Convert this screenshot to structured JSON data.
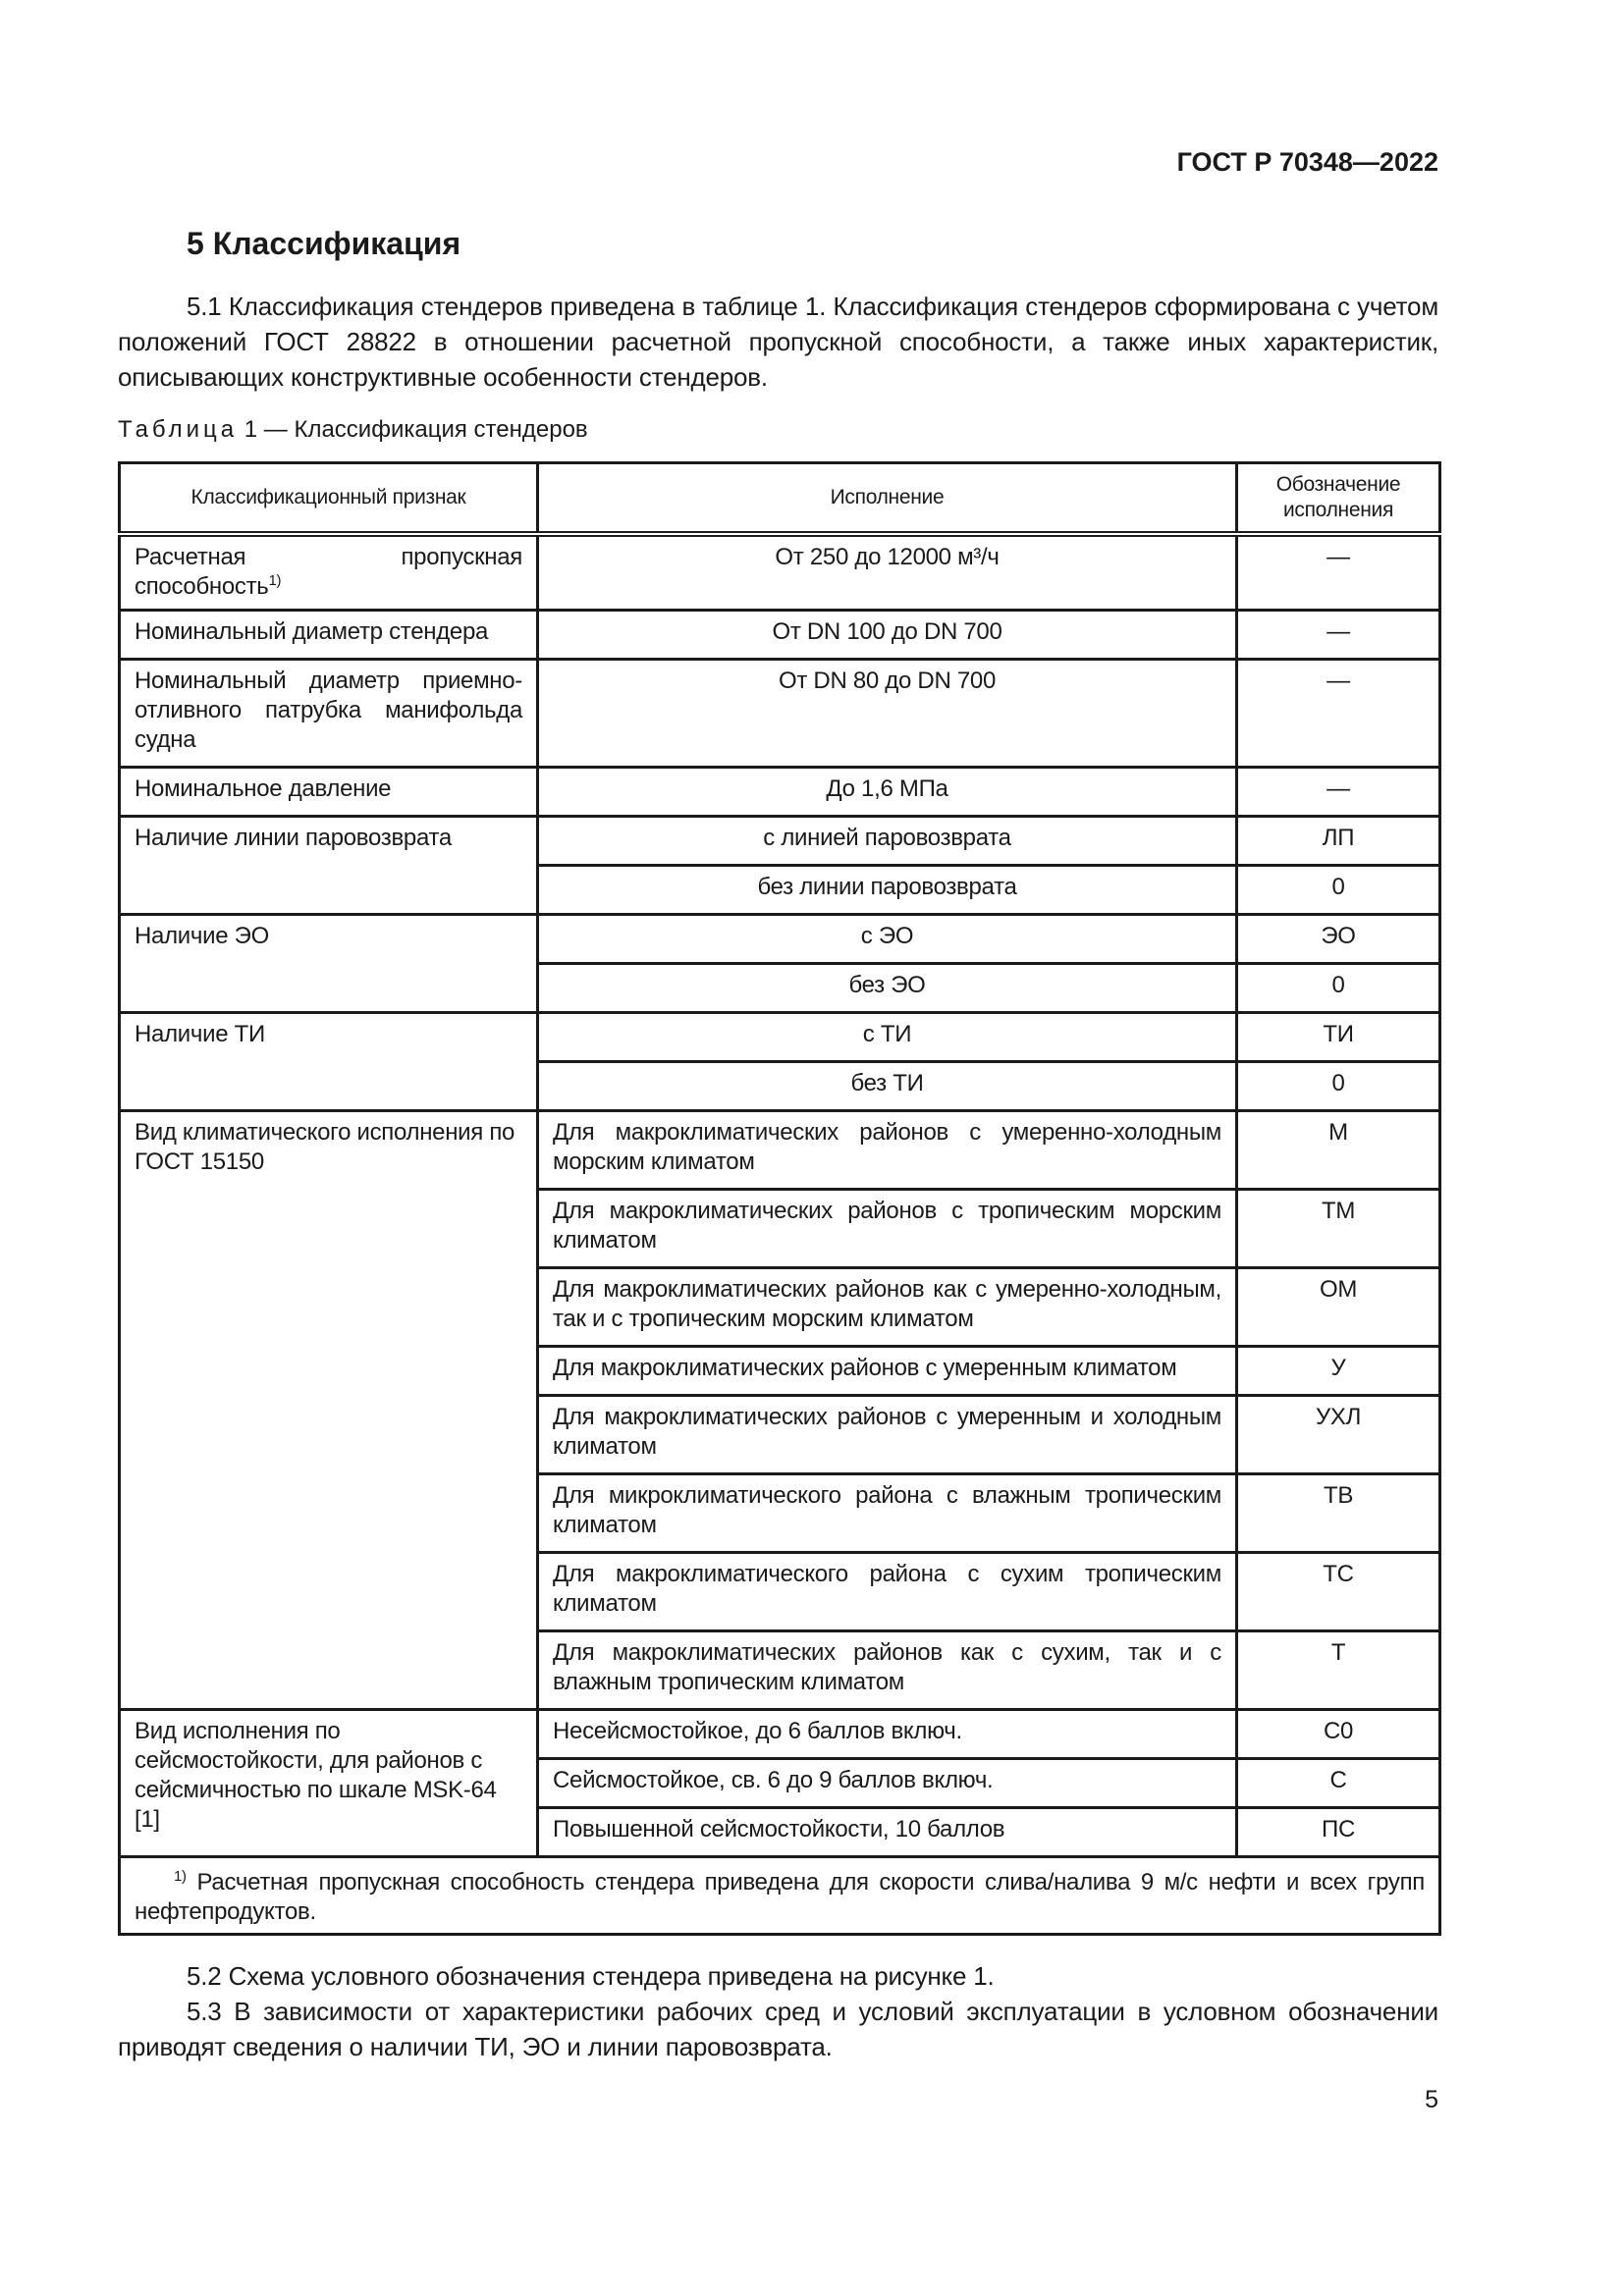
{
  "header": {
    "doc_id": "ГОСТ Р 70348—2022"
  },
  "section": {
    "title": "5 Классификация"
  },
  "paragraphs": {
    "p51": "5.1 Классификация стендеров приведена в таблице 1. Классификация стендеров сформирована с учетом положений ГОСТ 28822 в отношении расчетной пропускной способности, а также иных характеристик, описывающих конструктивные особенности стендеров.",
    "p52": "5.2 Схема условного обозначения стендера приведена на рисунке 1.",
    "p53": "5.3 В зависимости от характеристики рабочих сред и условий эксплуатации в условном обозначении приводят сведения о наличии ТИ, ЭО и линии паровозврата."
  },
  "table": {
    "caption_prefix": "Таблица",
    "caption_rest": "1 — Классификация стендеров",
    "headers": [
      "Классификационный признак",
      "Исполнение",
      "Обозначение исполнения"
    ],
    "groups": [
      {
        "feature": "Расчетная пропускная способность",
        "feature_sup": "1)",
        "rows": [
          {
            "value": "От 250 до 12000 м³/ч",
            "code": "—",
            "h": 78
          }
        ]
      },
      {
        "feature": "Номинальный диаметр стендера",
        "rows": [
          {
            "value": "От DN 100 до DN 700",
            "code": "—",
            "h": 50
          }
        ]
      },
      {
        "feature": "Номинальный диаметр приемно-отливного патрубка манифольда судна",
        "rows": [
          {
            "value": "От DN 80 до DN 700",
            "code": "—",
            "h": 110
          }
        ]
      },
      {
        "feature": "Номинальное давление",
        "rows": [
          {
            "value": "До 1,6 МПа",
            "code": "—",
            "h": 50
          }
        ]
      },
      {
        "feature": "Наличие линии паровозврата",
        "rows": [
          {
            "value": "с линией паровозврата",
            "code": "ЛП",
            "h": 50
          },
          {
            "value": "без линии паровозврата",
            "code": "0",
            "h": 50
          }
        ]
      },
      {
        "feature": "Наличие ЭО",
        "rows": [
          {
            "value": "с ЭО",
            "code": "ЭО",
            "h": 50
          },
          {
            "value": "без ЭО",
            "code": "0",
            "h": 50
          }
        ]
      },
      {
        "feature": "Наличие ТИ",
        "rows": [
          {
            "value": "с ТИ",
            "code": "ТИ",
            "h": 50
          },
          {
            "value": "без ТИ",
            "code": "0",
            "h": 50
          }
        ]
      },
      {
        "feature": "Вид климатического исполнения по ГОСТ 15150",
        "left": true,
        "rows": [
          {
            "value": "Для макроклиматических районов с умеренно-холодным морским климатом",
            "code": "М",
            "h": 80
          },
          {
            "value": "Для макроклиматических районов с тропическим морским климатом",
            "code": "ТМ",
            "h": 80
          },
          {
            "value": "Для макроклиматических районов как с умеренно-холодным, так и с тропическим морским климатом",
            "code": "ОМ",
            "h": 80
          },
          {
            "value": "Для макроклиматических районов с умеренным климатом",
            "code": "У",
            "h": 50
          },
          {
            "value": "Для макроклиматических районов с умеренным и холодным климатом",
            "code": "УХЛ",
            "h": 80
          },
          {
            "value": "Для микроклиматического района с влажным тропическим климатом",
            "code": "ТВ",
            "h": 80
          },
          {
            "value": "Для макроклиматического района с сухим тропическим климатом",
            "code": "ТС",
            "h": 80
          },
          {
            "value": "Для макроклиматических районов как с сухим, так и с влажным тропическим климатом",
            "code": "Т",
            "h": 80
          }
        ]
      },
      {
        "feature": "Вид исполнения по сейсмостойкости, для районов с сейсмичностью по шкале MSK-64 [1]",
        "left": true,
        "rows": [
          {
            "value": "Несейсмостойкое, до 6 баллов включ.",
            "code": "С0",
            "h": 50
          },
          {
            "value": "Сейсмостойкое, св. 6 до 9 баллов включ.",
            "code": "С",
            "h": 50
          },
          {
            "value": "Повышенной сейсмостойкости, 10 баллов",
            "code": "ПС",
            "h": 50
          }
        ]
      }
    ],
    "footnote_mark": "1)",
    "footnote": "Расчетная пропускная способность стендера приведена для скорости слива/налива 9 м/с нефти и всех групп нефтепродуктов."
  },
  "page_number": "5"
}
